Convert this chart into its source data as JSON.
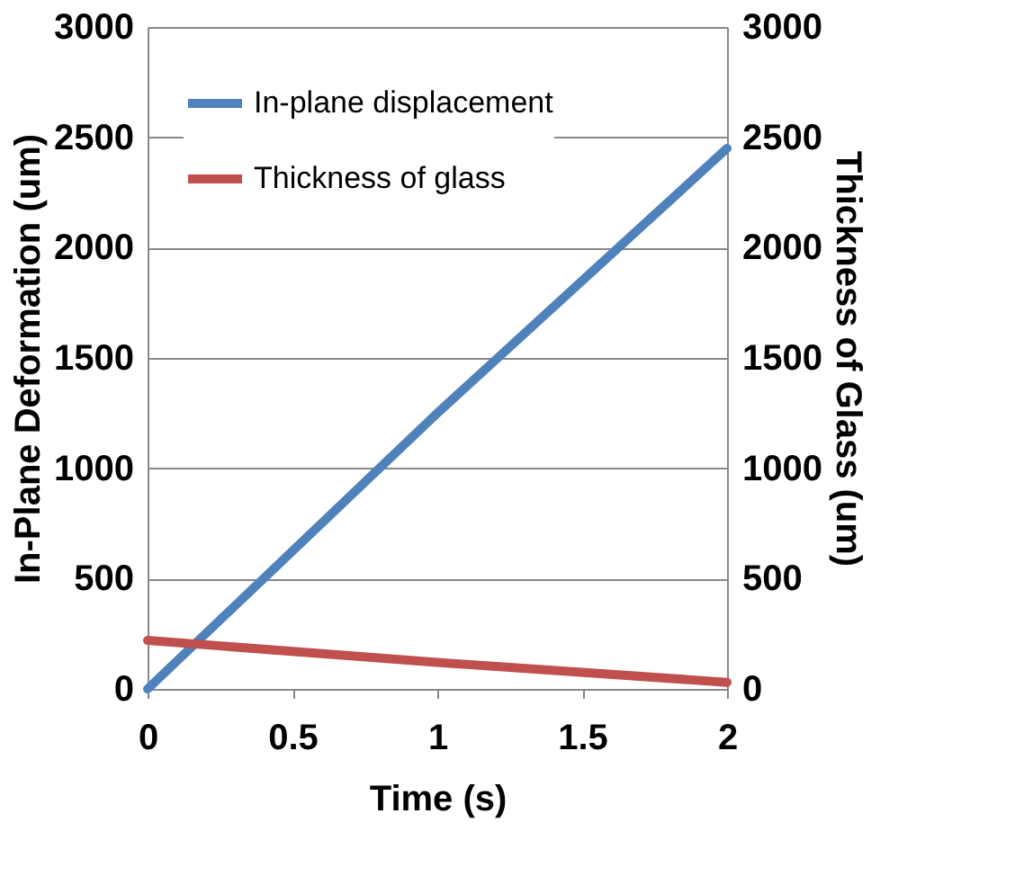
{
  "chart_data": {
    "type": "line",
    "xlabel": "Time (s)",
    "ylabel": "In-Plane Deformation (um)",
    "y2label": "Thickness of Glass (um)",
    "series": [
      {
        "name": "In-plane displacement",
        "color": "#4f81bd",
        "x": [
          0,
          1,
          2
        ],
        "values": [
          0,
          1250,
          2450
        ]
      },
      {
        "name": "Thickness of glass",
        "color": "#c0504d",
        "x": [
          0,
          1,
          2
        ],
        "values": [
          220,
          120,
          30
        ],
        "axis": "y2"
      }
    ],
    "xlim": [
      0,
      2
    ],
    "xticks": [
      0,
      0.5,
      1,
      1.5,
      2
    ],
    "ylim": [
      0,
      3000
    ],
    "yticks": [
      0,
      500,
      1000,
      1500,
      2000,
      2500,
      3000
    ],
    "y2lim": [
      0,
      3000
    ],
    "y2ticks": [
      0,
      500,
      1000,
      1500,
      2000,
      2500,
      3000
    ],
    "grid": "y",
    "legend": "top",
    "marker": "none",
    "line_style": "solid"
  }
}
